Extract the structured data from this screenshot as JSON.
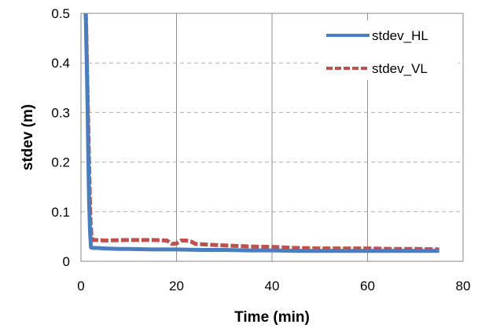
{
  "chart_data": {
    "type": "line",
    "xlabel": "Time (min)",
    "ylabel": "stdev (m)",
    "xlim": [
      0,
      80
    ],
    "ylim": [
      0,
      0.5
    ],
    "xticks": [
      0,
      20,
      40,
      60,
      80
    ],
    "yticks": [
      0,
      0.1,
      0.2,
      0.3,
      0.4,
      0.5
    ],
    "grid": true,
    "legend_position": "top-right",
    "series": [
      {
        "name": "stdev_HL",
        "color": "#4a7ebf",
        "style": "solid",
        "x": [
          1.0,
          1.1,
          1.25,
          1.4,
          1.55,
          1.7,
          1.9,
          2.1,
          2.5,
          3,
          5,
          8,
          10,
          15,
          20,
          25,
          30,
          35,
          40,
          45,
          50,
          55,
          60,
          65,
          70,
          75
        ],
        "y": [
          0.5,
          0.45,
          0.38,
          0.3,
          0.2,
          0.12,
          0.06,
          0.028,
          0.027,
          0.027,
          0.026,
          0.025,
          0.025,
          0.024,
          0.024,
          0.023,
          0.023,
          0.022,
          0.022,
          0.021,
          0.021,
          0.021,
          0.021,
          0.021,
          0.021,
          0.021
        ]
      },
      {
        "name": "stdev_VL",
        "color": "#c0504d",
        "style": "dashed",
        "x": [
          1.0,
          1.1,
          1.25,
          1.4,
          1.6,
          1.8,
          2.0,
          2.2,
          2.5,
          3,
          5,
          10,
          15,
          18,
          19,
          20,
          21,
          22,
          23,
          24,
          30,
          35,
          40,
          45,
          50,
          55,
          60,
          65,
          70,
          75
        ],
        "y": [
          0.5,
          0.47,
          0.4,
          0.33,
          0.24,
          0.15,
          0.08,
          0.05,
          0.043,
          0.043,
          0.042,
          0.043,
          0.043,
          0.042,
          0.035,
          0.036,
          0.042,
          0.042,
          0.04,
          0.035,
          0.032,
          0.03,
          0.029,
          0.027,
          0.026,
          0.026,
          0.026,
          0.025,
          0.025,
          0.024
        ]
      }
    ]
  }
}
